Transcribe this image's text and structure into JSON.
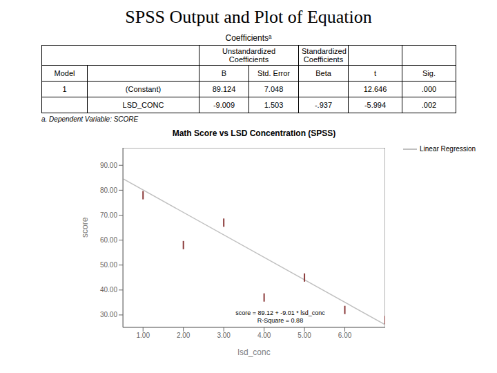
{
  "chart_data": {
    "type": "scatter",
    "title": "SPSS Output and Plot of Equation",
    "table": {
      "title": "Coefficientsᵃ",
      "group_headers": [
        "Unstandardized\nCoefficients",
        "Standardized\nCoefficients"
      ],
      "columns": [
        "Model",
        null,
        "B",
        "Std. Error",
        "Beta",
        "t",
        "Sig."
      ],
      "rows": [
        [
          "1",
          "(Constant)",
          "89.124",
          "7.048",
          null,
          "12.646",
          ".000"
        ],
        [
          null,
          "LSD_CONC",
          "-9.009",
          "1.503",
          "-.937",
          "-5.994",
          ".002"
        ]
      ],
      "footnote": "a.  Dependent Variable: SCORE"
    },
    "plot_title": "Math Score vs LSD Concentration (SPSS)",
    "x_label": "lsd_conc",
    "y_label": "score",
    "x": [
      1.0,
      2.0,
      3.0,
      4.0,
      5.0,
      6.0,
      7.0
    ],
    "values": [
      78.0,
      58.0,
      67.0,
      37.0,
      45.0,
      32.0,
      28.0
    ],
    "color": "#8B3A3A",
    "marker": "vline",
    "regression": {
      "name": "Linear Regression",
      "color": "#C0C0C0",
      "intercept": 89.124,
      "slope": -9.009
    },
    "annotations": [
      "score = 89.12 + -9.01 * lsd_conc",
      "R-Square = 0.88"
    ],
    "xlim": [
      0.5,
      7.0
    ],
    "ylim": [
      25,
      97
    ],
    "xticks": [
      {
        "value": 1.0,
        "label": "1.00"
      },
      {
        "value": 2.0,
        "label": "2.00"
      },
      {
        "value": 3.0,
        "label": "3.00"
      },
      {
        "value": 4.0,
        "label": "4.00"
      },
      {
        "value": 5.0,
        "label": "5.00"
      },
      {
        "value": 6.0,
        "label": "6.00"
      }
    ],
    "yticks": [
      {
        "value": 30.0,
        "label": "30.00"
      },
      {
        "value": 40.0,
        "label": "40.00"
      },
      {
        "value": 50.0,
        "label": "50.00"
      },
      {
        "value": 60.0,
        "label": "60.00"
      },
      {
        "value": 70.0,
        "label": "70.00"
      },
      {
        "value": 80.0,
        "label": "80.00"
      },
      {
        "value": 90.0,
        "label": "90.00"
      }
    ],
    "grid": false
  }
}
